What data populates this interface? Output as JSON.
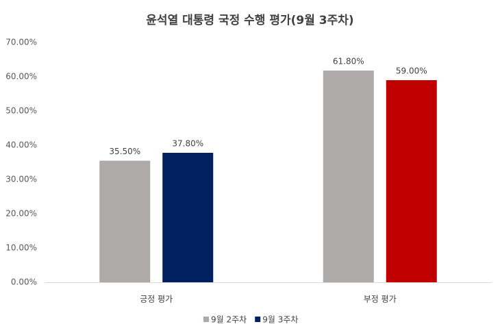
{
  "chart_data": {
    "type": "bar",
    "title": "윤석열 대통령 국정 수행 평가(9월 3주차)",
    "categories": [
      "긍정 평가",
      "부정 평가"
    ],
    "series": [
      {
        "name": "9월 2주차",
        "color": "#aeaaaa",
        "values": [
          35.5,
          61.8
        ],
        "value_labels": [
          "35.50%",
          "61.80%"
        ]
      },
      {
        "name": "9월 3주차",
        "color": "#002060",
        "colors": [
          "#002060",
          "#c00000"
        ],
        "values": [
          37.8,
          59.0
        ],
        "value_labels": [
          "37.80%",
          "59.00%"
        ]
      }
    ],
    "ylim": [
      0,
      70
    ],
    "yticks": [
      {
        "value": 0,
        "label": "0.00%"
      },
      {
        "value": 10,
        "label": "10.00%"
      },
      {
        "value": 20,
        "label": "20.00%"
      },
      {
        "value": 30,
        "label": "30.00%"
      },
      {
        "value": 40,
        "label": "40.00%"
      },
      {
        "value": 50,
        "label": "50.00%"
      },
      {
        "value": 60,
        "label": "60.00%"
      },
      {
        "value": 70,
        "label": "70.00%"
      }
    ],
    "grid": false,
    "legend": "bottom"
  }
}
